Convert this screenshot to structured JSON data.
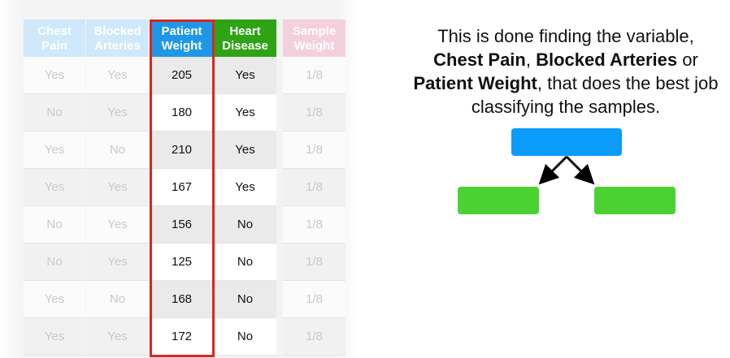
{
  "table": {
    "columns": [
      {
        "key": "chest",
        "header_line1": "Chest",
        "header_line2": "Pain",
        "values": [
          "Yes",
          "No",
          "Yes",
          "Yes",
          "No",
          "No",
          "Yes",
          "Yes"
        ]
      },
      {
        "key": "blocked",
        "header_line1": "Blocked",
        "header_line2": "Arteries",
        "values": [
          "Yes",
          "Yes",
          "No",
          "Yes",
          "Yes",
          "Yes",
          "No",
          "Yes"
        ]
      },
      {
        "key": "weight",
        "header_line1": "Patient",
        "header_line2": "Weight",
        "values": [
          "205",
          "180",
          "210",
          "167",
          "156",
          "125",
          "168",
          "172"
        ]
      },
      {
        "key": "heart",
        "header_line1": "Heart",
        "header_line2": "Disease",
        "values": [
          "Yes",
          "Yes",
          "Yes",
          "Yes",
          "No",
          "No",
          "No",
          "No"
        ]
      },
      {
        "key": "sample",
        "header_line1": "Sample",
        "header_line2": "Weight",
        "values": [
          "1/8",
          "1/8",
          "1/8",
          "1/8",
          "1/8",
          "1/8",
          "1/8",
          "1/8"
        ]
      }
    ],
    "colors": {
      "faded_header_blue": "#cfe8fb",
      "patient_weight_header": "#1f97e8",
      "heart_disease_header": "#2ea315",
      "sample_weight_header": "#f4d0dd",
      "highlight_border": "#d8281f"
    }
  },
  "explanation": {
    "part1": "This is done finding the variable,",
    "bold1": "Chest Pain",
    "sep1": ", ",
    "bold2": "Blocked Arteries",
    "part2": " or",
    "bold3": "Patient Weight",
    "part3": ", that does the best job classifying the samples."
  },
  "tree": {
    "root_color": "#0a9bfb",
    "leaf_color": "#4ad233"
  }
}
